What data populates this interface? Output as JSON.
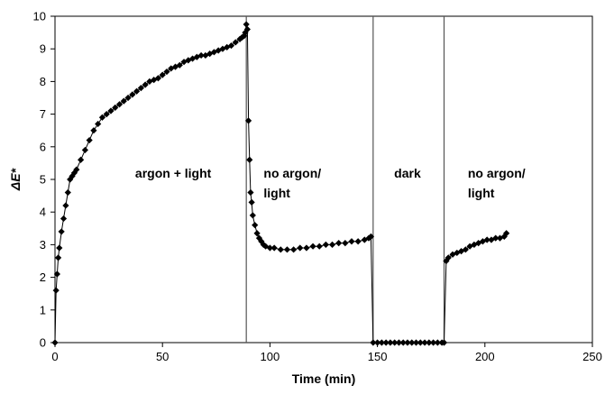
{
  "chart_data": {
    "type": "scatter",
    "xlabel": "Time (min)",
    "ylabel": "ΔE*",
    "xlim": [
      0,
      250
    ],
    "ylim": [
      0,
      10
    ],
    "xticks": [
      "0",
      "50",
      "100",
      "150",
      "200",
      "250"
    ],
    "yticks": [
      "0",
      "1",
      "2",
      "3",
      "4",
      "5",
      "6",
      "7",
      "8",
      "9",
      "10"
    ],
    "grid": false,
    "legend": "none",
    "marker": "diamond",
    "marker_color": "#000000",
    "phase_boundaries": [
      89,
      148,
      181
    ],
    "annotations": [
      {
        "lines": [
          "argon + light"
        ],
        "x": 55,
        "y": 5.05
      },
      {
        "lines": [
          "no argon/",
          "light"
        ],
        "x": 100,
        "y": 5.05
      },
      {
        "lines": [
          "dark"
        ],
        "x": 164,
        "y": 5.05
      },
      {
        "lines": [
          "no argon/",
          "light"
        ],
        "x": 195,
        "y": 5.05
      }
    ],
    "series": [
      {
        "x": [
          0,
          0.5,
          1,
          1.5,
          2,
          3,
          4,
          5,
          6,
          7,
          8,
          9,
          10,
          12,
          14,
          16,
          18,
          20,
          22,
          24,
          26,
          28,
          30,
          32,
          34,
          36,
          38,
          40,
          42,
          44,
          46,
          48,
          50,
          52,
          54,
          56,
          58,
          60,
          62,
          64,
          66,
          68,
          70,
          72,
          74,
          76,
          78,
          80,
          82,
          84,
          86,
          87,
          88,
          88.5,
          89,
          89.5,
          90,
          90.5,
          91,
          91.5,
          92,
          93,
          94,
          95,
          96,
          97,
          98,
          100,
          102,
          105,
          108,
          111,
          114,
          117,
          120,
          123,
          126,
          129,
          132,
          135,
          138,
          141,
          144,
          146,
          147,
          148,
          150,
          152,
          154,
          156,
          158,
          160,
          162,
          164,
          166,
          168,
          170,
          172,
          174,
          176,
          178,
          180,
          181,
          182,
          183,
          185,
          187,
          189,
          191,
          193,
          195,
          197,
          199,
          201,
          203,
          205,
          207,
          209,
          210
        ],
        "y": [
          0,
          1.6,
          2.1,
          2.6,
          2.9,
          3.4,
          3.8,
          4.2,
          4.6,
          5.0,
          5.1,
          5.2,
          5.3,
          5.6,
          5.9,
          6.2,
          6.5,
          6.7,
          6.9,
          7.0,
          7.1,
          7.2,
          7.3,
          7.4,
          7.5,
          7.6,
          7.7,
          7.8,
          7.9,
          8.0,
          8.05,
          8.1,
          8.2,
          8.3,
          8.4,
          8.45,
          8.5,
          8.6,
          8.65,
          8.7,
          8.75,
          8.8,
          8.8,
          8.85,
          8.9,
          8.95,
          9.0,
          9.05,
          9.1,
          9.2,
          9.3,
          9.35,
          9.4,
          9.5,
          9.75,
          9.6,
          6.8,
          5.6,
          4.6,
          4.3,
          3.9,
          3.6,
          3.35,
          3.2,
          3.1,
          3.0,
          2.95,
          2.9,
          2.9,
          2.85,
          2.85,
          2.85,
          2.9,
          2.9,
          2.95,
          2.95,
          3.0,
          3.0,
          3.05,
          3.05,
          3.1,
          3.1,
          3.15,
          3.2,
          3.25,
          0,
          0,
          0,
          0,
          0,
          0,
          0,
          0,
          0,
          0,
          0,
          0,
          0,
          0,
          0,
          0,
          0,
          0,
          2.5,
          2.6,
          2.7,
          2.75,
          2.8,
          2.85,
          2.95,
          3.0,
          3.05,
          3.1,
          3.15,
          3.15,
          3.2,
          3.2,
          3.25,
          3.35
        ]
      }
    ]
  }
}
